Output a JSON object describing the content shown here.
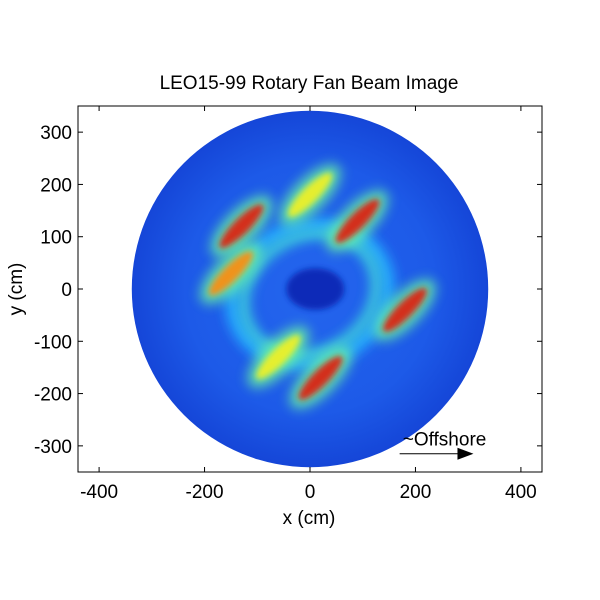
{
  "chart_data": {
    "type": "heatmap",
    "title": "LEO15-99 Rotary Fan Beam Image",
    "xlabel": "x (cm)",
    "ylabel": "y (cm)",
    "xlim": [
      -440,
      440
    ],
    "ylim": [
      -350,
      350
    ],
    "xticks": [
      -400,
      -200,
      0,
      200,
      400
    ],
    "yticks": [
      300,
      200,
      100,
      0,
      -100,
      -200,
      -300
    ],
    "image_extent": {
      "shape": "disc",
      "center": [
        0,
        0
      ],
      "radius": 338
    },
    "colormap": [
      "#00008f",
      "#0040ff",
      "#00c0ff",
      "#60ffa0",
      "#ffff00",
      "#ff8000",
      "#d00000"
    ],
    "background_color": "#1f5fe6",
    "dark_center": {
      "center": [
        10,
        0
      ],
      "radius_x": 55,
      "radius_y": 40
    },
    "high_intensity_regions": [
      {
        "x": 180,
        "y": -40,
        "level": "red"
      },
      {
        "x": -130,
        "y": 120,
        "level": "red"
      },
      {
        "x": -150,
        "y": 30,
        "level": "orange"
      },
      {
        "x": 20,
        "y": -170,
        "level": "red"
      },
      {
        "x": -60,
        "y": -130,
        "level": "yellow"
      },
      {
        "x": 90,
        "y": 130,
        "level": "red"
      },
      {
        "x": 0,
        "y": 180,
        "level": "yellow"
      }
    ],
    "annotation": {
      "text": "~Offshore",
      "arrow_from": [
        170,
        -315
      ],
      "arrow_to": [
        310,
        -315
      ]
    }
  }
}
